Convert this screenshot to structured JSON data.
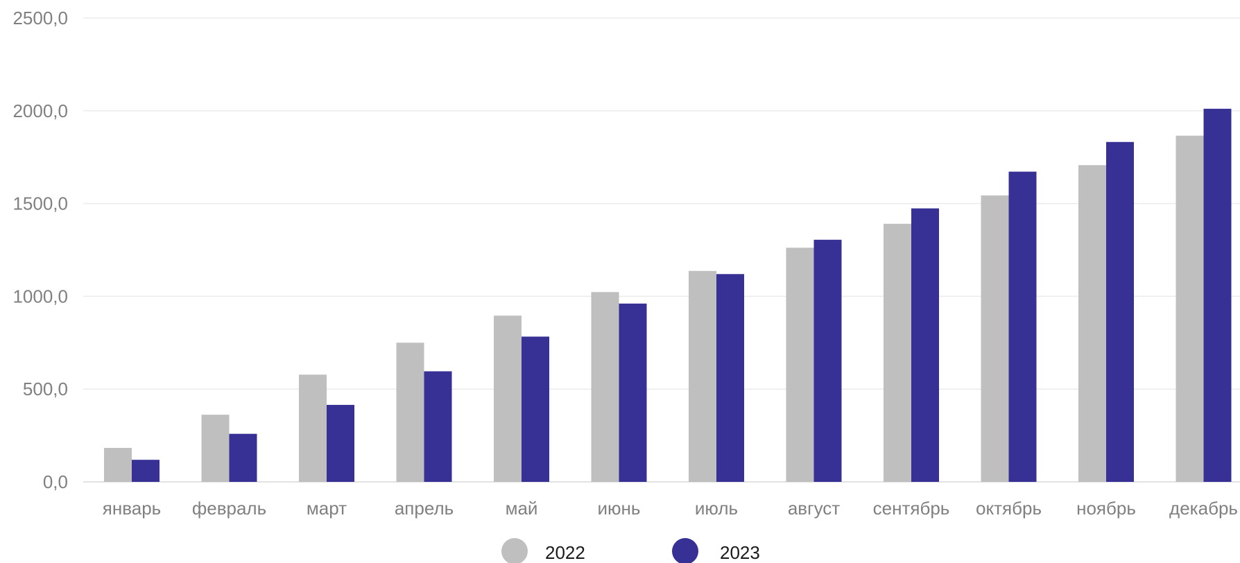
{
  "chart_data": {
    "type": "bar",
    "title": "",
    "xlabel": "",
    "ylabel": "",
    "ylim": [
      0,
      2500
    ],
    "yticks": [
      "0,0",
      "500,0",
      "1000,0",
      "1500,0",
      "2000,0",
      "2500,0"
    ],
    "ytick_values": [
      0,
      500,
      1000,
      1500,
      2000,
      2500
    ],
    "grid": true,
    "legend_position": "bottom",
    "categories": [
      "январь",
      "февраль",
      "март",
      "апрель",
      "май",
      "июнь",
      "июль",
      "август",
      "сентябрь",
      "октябрь",
      "ноябрь",
      "декабрь"
    ],
    "series": [
      {
        "name": "2022",
        "color": "#bfbfbf",
        "values": [
          183,
          362,
          578,
          750,
          896,
          1023,
          1137,
          1262,
          1391,
          1544,
          1707,
          1866
        ]
      },
      {
        "name": "2023",
        "color": "#373195",
        "values": [
          119,
          259,
          415,
          596,
          783,
          961,
          1120,
          1305,
          1474,
          1672,
          1832,
          2011
        ]
      }
    ]
  }
}
